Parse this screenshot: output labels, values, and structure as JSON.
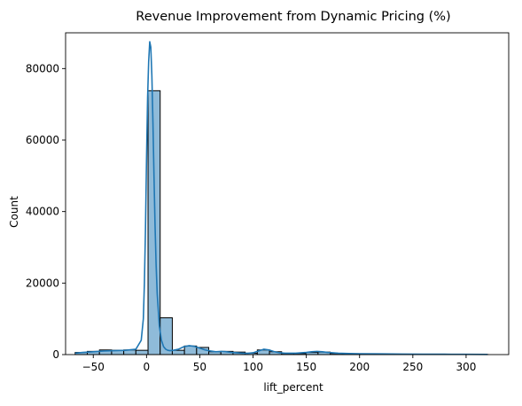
{
  "chart_data": {
    "type": "bar",
    "title": "Revenue Improvement from Dynamic Pricing (%)",
    "xlabel": "lift_percent",
    "ylabel": "Count",
    "xlim": [
      -76,
      340
    ],
    "ylim": [
      0,
      90000
    ],
    "xticks": [
      -50,
      0,
      50,
      100,
      150,
      200,
      250,
      300
    ],
    "xtick_labels": [
      "−50",
      "0",
      "50",
      "100",
      "150",
      "200",
      "250",
      "300"
    ],
    "yticks": [
      0,
      20000,
      40000,
      60000,
      80000
    ],
    "ytick_labels": [
      "0",
      "20000",
      "40000",
      "60000",
      "80000"
    ],
    "grid": false,
    "bar_color": "#1f77b4",
    "bar_fill_color": "#8fbbd9",
    "bar_edge_color": "#000000",
    "bins": [
      {
        "x0": -67.0,
        "x1": -55.6,
        "count": 600
      },
      {
        "x0": -55.6,
        "x1": -44.2,
        "count": 900
      },
      {
        "x0": -44.2,
        "x1": -32.8,
        "count": 1300
      },
      {
        "x0": -32.8,
        "x1": -21.4,
        "count": 1200
      },
      {
        "x0": -21.4,
        "x1": -10.0,
        "count": 1300
      },
      {
        "x0": -10.0,
        "x1": 1.4,
        "count": 1200
      },
      {
        "x0": 1.4,
        "x1": 12.8,
        "count": 73800
      },
      {
        "x0": 12.8,
        "x1": 24.2,
        "count": 10300
      },
      {
        "x0": 24.2,
        "x1": 35.6,
        "count": 1200
      },
      {
        "x0": 35.6,
        "x1": 47.0,
        "count": 2400
      },
      {
        "x0": 47.0,
        "x1": 58.4,
        "count": 2000
      },
      {
        "x0": 58.4,
        "x1": 69.8,
        "count": 800
      },
      {
        "x0": 69.8,
        "x1": 81.2,
        "count": 900
      },
      {
        "x0": 81.2,
        "x1": 92.6,
        "count": 700
      },
      {
        "x0": 92.6,
        "x1": 104.0,
        "count": 400
      },
      {
        "x0": 104.0,
        "x1": 115.4,
        "count": 1300
      },
      {
        "x0": 115.4,
        "x1": 126.8,
        "count": 800
      },
      {
        "x0": 126.8,
        "x1": 138.2,
        "count": 300
      },
      {
        "x0": 138.2,
        "x1": 149.6,
        "count": 300
      },
      {
        "x0": 149.6,
        "x1": 161.0,
        "count": 600
      },
      {
        "x0": 161.0,
        "x1": 172.4,
        "count": 700
      },
      {
        "x0": 172.4,
        "x1": 183.8,
        "count": 300
      },
      {
        "x0": 183.8,
        "x1": 195.2,
        "count": 200
      },
      {
        "x0": 195.2,
        "x1": 206.6,
        "count": 150
      },
      {
        "x0": 206.6,
        "x1": 218.0,
        "count": 120
      },
      {
        "x0": 218.0,
        "x1": 229.4,
        "count": 100
      },
      {
        "x0": 229.4,
        "x1": 240.8,
        "count": 80
      },
      {
        "x0": 240.8,
        "x1": 252.2,
        "count": 70
      },
      {
        "x0": 252.2,
        "x1": 263.6,
        "count": 100
      },
      {
        "x0": 263.6,
        "x1": 275.0,
        "count": 90
      },
      {
        "x0": 275.0,
        "x1": 286.4,
        "count": 60
      },
      {
        "x0": 286.4,
        "x1": 297.8,
        "count": 50
      },
      {
        "x0": 297.8,
        "x1": 309.2,
        "count": 40
      },
      {
        "x0": 309.2,
        "x1": 320.6,
        "count": 30
      }
    ],
    "kde": {
      "x": [
        -67,
        -60,
        -50,
        -40,
        -30,
        -20,
        -10,
        -5,
        -3,
        -2,
        -1,
        0,
        1,
        2,
        3,
        4,
        5,
        6,
        7,
        8,
        9,
        10,
        12,
        14,
        16,
        18,
        20,
        22,
        25,
        30,
        35,
        40,
        45,
        50,
        55,
        60,
        65,
        70,
        75,
        80,
        85,
        90,
        95,
        100,
        105,
        110,
        115,
        120,
        125,
        130,
        140,
        150,
        155,
        160,
        165,
        170,
        180,
        190,
        200,
        220,
        240,
        260,
        280,
        300,
        320
      ],
      "y": [
        400,
        600,
        800,
        1000,
        1100,
        1200,
        1500,
        4000,
        10000,
        20000,
        35000,
        55000,
        72000,
        82000,
        87500,
        86000,
        78000,
        65000,
        50000,
        36000,
        25000,
        17000,
        8000,
        4000,
        2200,
        1500,
        1200,
        1100,
        1200,
        1500,
        2200,
        2500,
        2300,
        1800,
        1300,
        1000,
        800,
        900,
        800,
        600,
        500,
        400,
        350,
        500,
        1000,
        1500,
        1300,
        800,
        500,
        400,
        400,
        600,
        800,
        900,
        800,
        600,
        400,
        300,
        250,
        200,
        150,
        120,
        100,
        80,
        50
      ]
    }
  }
}
